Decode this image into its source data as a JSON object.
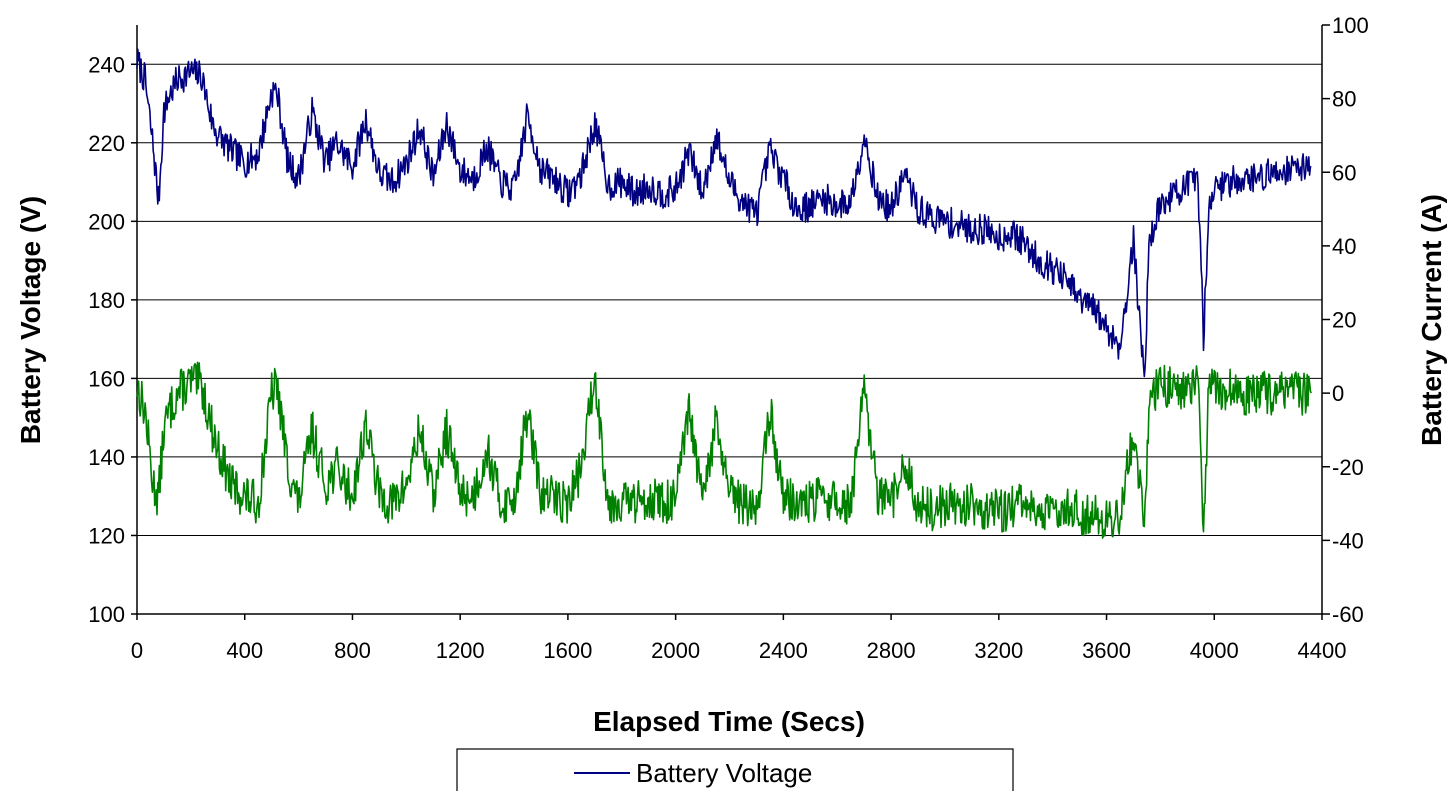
{
  "chart_data": {
    "type": "line",
    "title": "",
    "xlabel": "Elapsed Time (Secs)",
    "ylabel": "Battery Voltage (V)",
    "y2label": "Battery Current (A)",
    "xlim": [
      0,
      4400
    ],
    "ylim": [
      100,
      250
    ],
    "y2lim": [
      -60,
      100
    ],
    "x_ticks": [
      "0",
      "400",
      "800",
      "1200",
      "1600",
      "2000",
      "2400",
      "2800",
      "3200",
      "3600",
      "4000",
      "4400"
    ],
    "y_ticks": [
      "100",
      "120",
      "140",
      "160",
      "180",
      "200",
      "220",
      "240"
    ],
    "y2_ticks": [
      "-60",
      "-40",
      "-20",
      "0",
      "20",
      "40",
      "60",
      "80",
      "100"
    ],
    "grid": "horizontal",
    "legend_position": "bottom",
    "colors": {
      "voltage": "#000080",
      "current": "#008000"
    },
    "series": [
      {
        "name": "Battery Voltage",
        "axis": "left",
        "x": [
          0,
          30,
          60,
          80,
          100,
          120,
          150,
          200,
          240,
          280,
          300,
          350,
          400,
          450,
          500,
          520,
          560,
          600,
          650,
          700,
          740,
          800,
          850,
          900,
          950,
          1000,
          1050,
          1100,
          1150,
          1200,
          1250,
          1300,
          1350,
          1400,
          1450,
          1500,
          1550,
          1600,
          1650,
          1700,
          1750,
          1800,
          1850,
          1900,
          1950,
          2000,
          2050,
          2100,
          2150,
          2200,
          2250,
          2300,
          2350,
          2400,
          2450,
          2500,
          2550,
          2600,
          2650,
          2700,
          2750,
          2800,
          2850,
          2900,
          2950,
          3000,
          3050,
          3100,
          3150,
          3200,
          3250,
          3300,
          3350,
          3400,
          3450,
          3500,
          3550,
          3600,
          3650,
          3700,
          3740,
          3760,
          3800,
          3850,
          3900,
          3940,
          3960,
          3980,
          4000,
          4050,
          4100,
          4150,
          4200,
          4250,
          4300,
          4360
        ],
        "values": [
          241,
          236,
          219,
          205,
          228,
          232,
          236,
          238,
          237,
          225,
          222,
          218,
          215,
          217,
          233,
          233,
          215,
          211,
          228,
          215,
          220,
          214,
          226,
          212,
          210,
          215,
          224,
          211,
          225,
          213,
          211,
          219,
          210,
          208,
          227,
          213,
          211,
          207,
          212,
          225,
          209,
          210,
          207,
          209,
          207,
          208,
          218,
          207,
          222,
          210,
          205,
          202,
          218,
          211,
          203,
          204,
          206,
          204,
          205,
          222,
          206,
          203,
          212,
          203,
          201,
          200,
          199,
          198,
          198,
          196,
          197,
          194,
          190,
          188,
          185,
          180,
          178,
          173,
          168,
          195,
          160,
          196,
          204,
          207,
          209,
          210,
          170,
          205,
          208,
          210,
          211,
          211,
          212,
          213,
          214,
          214
        ],
        "noise": 4,
        "seed": 7
      },
      {
        "name": "Battery Current",
        "axis": "right",
        "x": [
          0,
          30,
          60,
          80,
          100,
          120,
          150,
          200,
          240,
          280,
          300,
          350,
          400,
          450,
          500,
          520,
          560,
          600,
          650,
          700,
          740,
          800,
          850,
          900,
          950,
          1000,
          1050,
          1100,
          1150,
          1200,
          1250,
          1300,
          1350,
          1400,
          1450,
          1500,
          1550,
          1600,
          1650,
          1700,
          1750,
          1800,
          1850,
          1900,
          1950,
          2000,
          2050,
          2100,
          2150,
          2200,
          2250,
          2300,
          2350,
          2400,
          2450,
          2500,
          2550,
          2600,
          2650,
          2700,
          2750,
          2800,
          2850,
          2900,
          2950,
          3000,
          3050,
          3100,
          3150,
          3200,
          3250,
          3300,
          3350,
          3400,
          3450,
          3500,
          3550,
          3600,
          3650,
          3700,
          3740,
          3760,
          3800,
          3850,
          3900,
          3940,
          3960,
          3980,
          4000,
          4050,
          4100,
          4150,
          4200,
          4250,
          4300,
          4360
        ],
        "values": [
          2,
          -5,
          -25,
          -28,
          -10,
          -5,
          0,
          3,
          2,
          -10,
          -15,
          -25,
          -28,
          -30,
          0,
          2,
          -20,
          -30,
          -10,
          -25,
          -20,
          -28,
          -8,
          -28,
          -30,
          -25,
          -10,
          -28,
          -10,
          -27,
          -28,
          -15,
          -30,
          -29,
          -5,
          -28,
          -28,
          -30,
          -20,
          5,
          -30,
          -29,
          -30,
          -28,
          -30,
          -29,
          -5,
          -30,
          -8,
          -28,
          -30,
          -32,
          -5,
          -28,
          -30,
          -30,
          -28,
          -30,
          -30,
          0,
          -28,
          -30,
          -20,
          -30,
          -32,
          -30,
          -31,
          -30,
          -32,
          -32,
          -31,
          -30,
          -33,
          -33,
          -30,
          -33,
          -32,
          -35,
          -33,
          -10,
          -35,
          0,
          2,
          1,
          2,
          2,
          -35,
          1,
          2,
          1,
          0,
          0,
          0,
          0,
          0,
          0
        ],
        "noise": 6,
        "seed": 13
      }
    ]
  }
}
